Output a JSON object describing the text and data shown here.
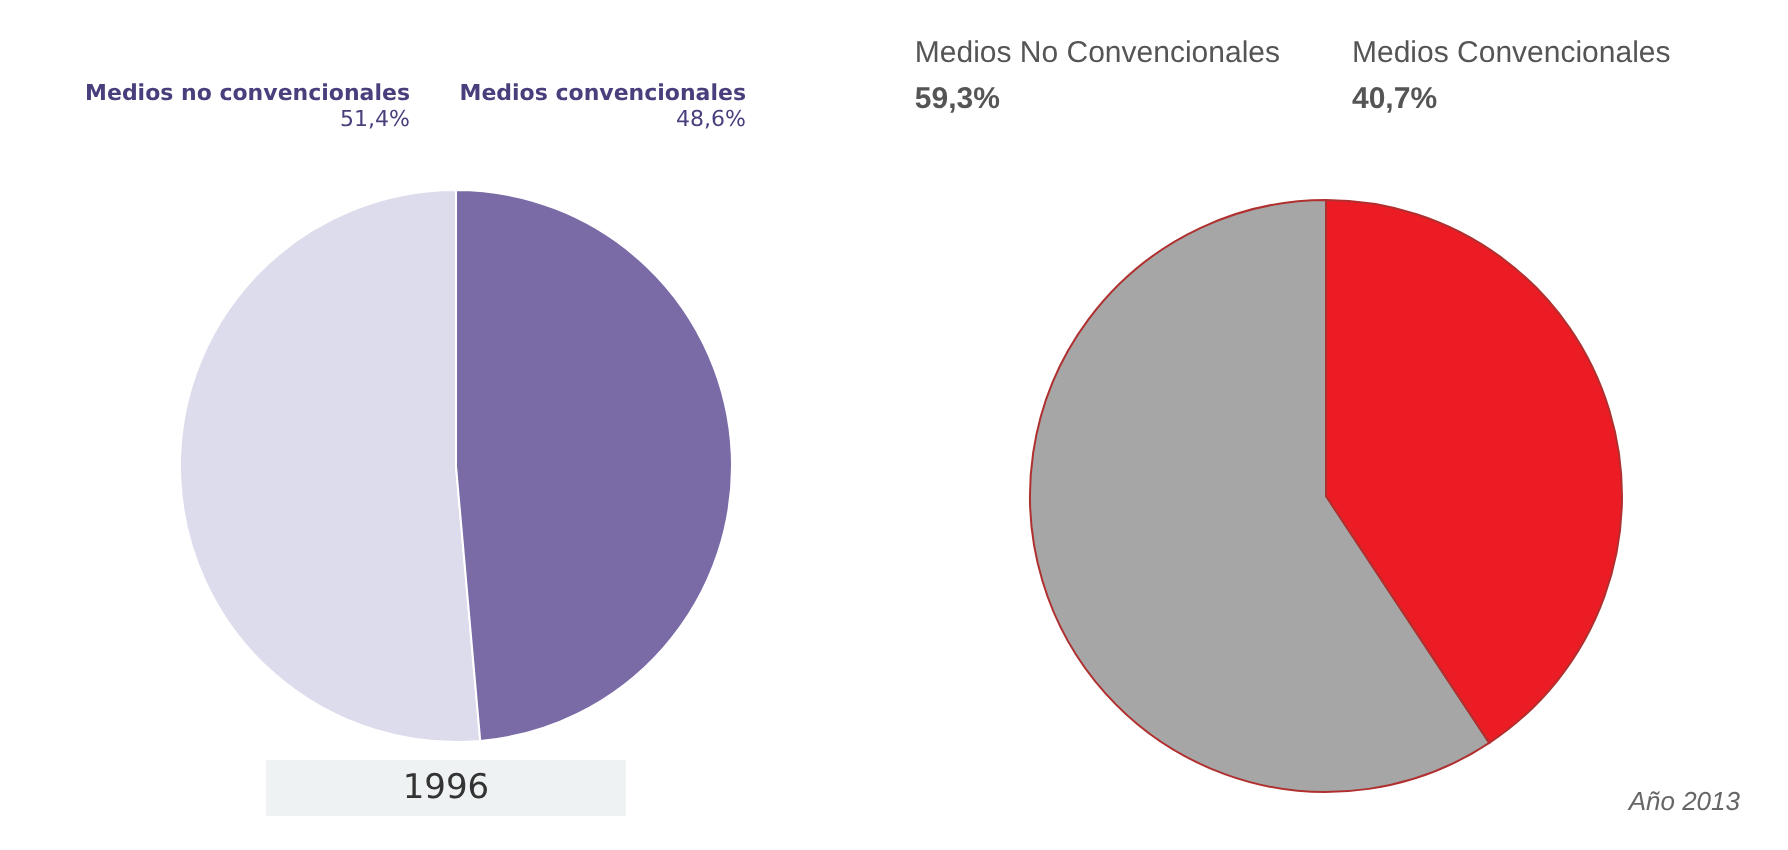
{
  "chart_data": [
    {
      "type": "pie",
      "title": "1996",
      "categories": [
        "Medios no convencionales",
        "Medios convencionales"
      ],
      "values": [
        51.4,
        48.6
      ],
      "colors": [
        "#dcdcec",
        "#7a6aa6"
      ],
      "value_labels": [
        "51,4%",
        "48,6%"
      ],
      "legend": false
    },
    {
      "type": "pie",
      "categories": [
        "Medios No Convencionales",
        "Medios Convencionales"
      ],
      "values": [
        59.3,
        40.7
      ],
      "colors": [
        "#a6a6a6",
        "#ec1c24"
      ],
      "value_labels": [
        "59,3%",
        "40,7%"
      ],
      "legend": false,
      "annotations": [
        "Año 2013"
      ]
    }
  ]
}
